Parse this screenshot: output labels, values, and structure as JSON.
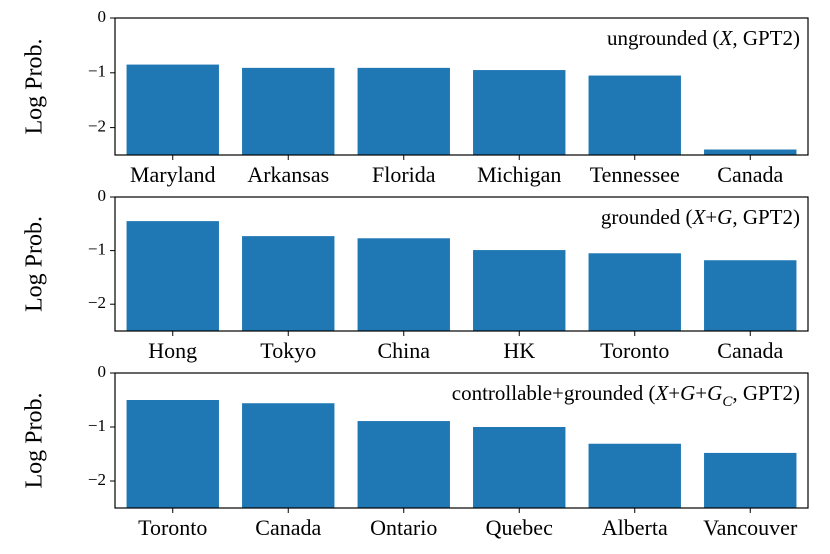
{
  "chart_data": [
    {
      "type": "bar",
      "annotation": [
        "ungrounded (",
        "X",
        ", GPT2)"
      ],
      "ylabel": "Log Prob.",
      "categories": [
        "Maryland",
        "Arkansas",
        "Florida",
        "Michigan",
        "Tennessee",
        "Canada"
      ],
      "values": [
        -0.85,
        -0.91,
        -0.91,
        -0.95,
        -1.05,
        -2.4
      ],
      "color": "#1f77b4",
      "ylim": [
        -2.5,
        0
      ],
      "yticks": [
        {
          "value": -2,
          "label": "−2"
        },
        {
          "value": -1,
          "label": "−1"
        },
        0
      ]
    },
    {
      "type": "bar",
      "annotation": [
        "grounded (",
        "X",
        "+",
        "G",
        ", GPT2)"
      ],
      "ylabel": "Log Prob.",
      "categories": [
        "Hong",
        "Tokyo",
        "China",
        "HK",
        "Toronto",
        "Canada"
      ],
      "values": [
        -0.45,
        -0.73,
        -0.77,
        -0.99,
        -1.05,
        -1.18
      ],
      "color": "#1f77b4",
      "ylim": [
        -2.5,
        0
      ],
      "yticks": [
        {
          "value": -2,
          "label": "−2"
        },
        {
          "value": -1,
          "label": "−1"
        },
        0
      ]
    },
    {
      "type": "bar",
      "annotation": [
        "controllable+grounded (",
        "X",
        "+",
        "G",
        "+",
        "G",
        "C",
        ", GPT2)"
      ],
      "ylabel": "Log Prob.",
      "categories": [
        "Toronto",
        "Canada",
        "Ontario",
        "Quebec",
        "Alberta",
        "Vancouver"
      ],
      "values": [
        -0.5,
        -0.56,
        -0.89,
        -1.0,
        -1.31,
        -1.48
      ],
      "color": "#1f77b4",
      "ylim": [
        -2.5,
        0
      ],
      "yticks": [
        {
          "value": -2,
          "label": "−2"
        },
        {
          "value": -1,
          "label": "−1"
        },
        0
      ]
    }
  ]
}
